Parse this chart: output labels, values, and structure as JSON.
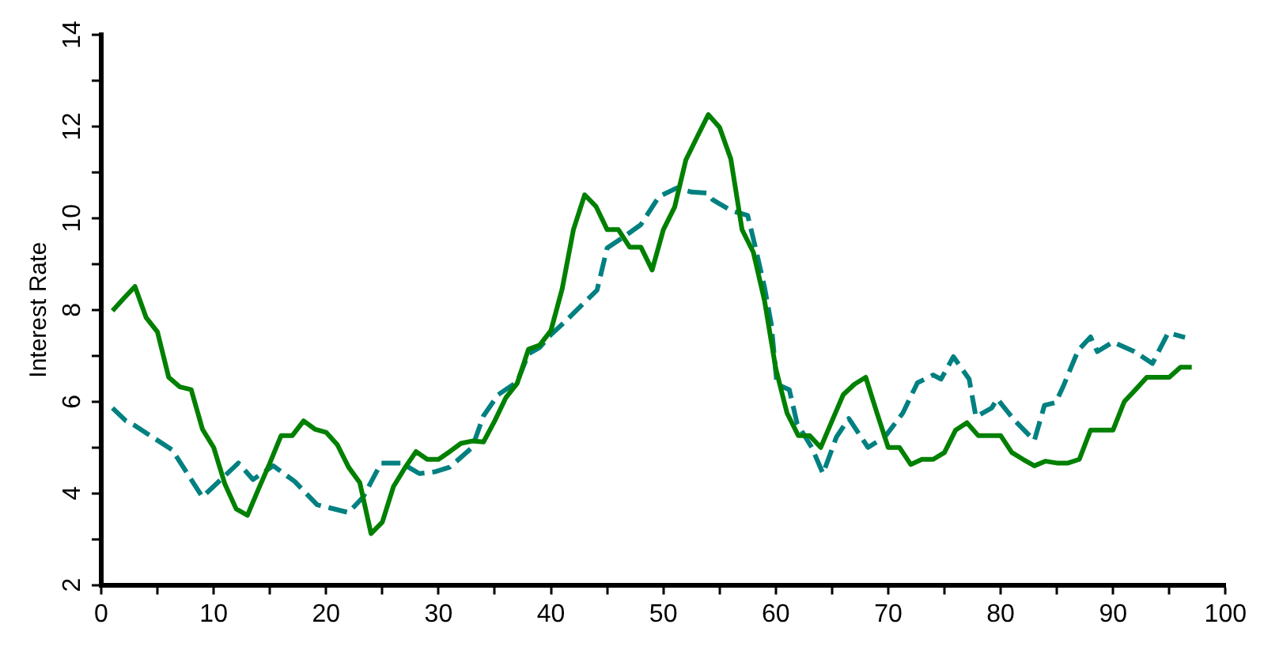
{
  "chart_data": {
    "type": "line",
    "ylabel": "Interest Rate",
    "xlim": [
      0,
      100
    ],
    "ylim": [
      2,
      14
    ],
    "xticks": [
      0,
      {
        "value": 5,
        "label": null
      },
      10,
      {
        "value": 15,
        "label": null
      },
      20,
      {
        "value": 25,
        "label": null
      },
      30,
      {
        "value": 35,
        "label": null
      },
      40,
      {
        "value": 45,
        "label": null
      },
      50,
      {
        "value": 55,
        "label": null
      },
      60,
      {
        "value": 65,
        "label": null
      },
      70,
      {
        "value": 75,
        "label": null
      },
      80,
      {
        "value": 85,
        "label": null
      },
      90,
      {
        "value": 95,
        "label": null
      },
      100
    ],
    "yticks": [
      2,
      {
        "value": 3,
        "label": null
      },
      4,
      {
        "value": 5,
        "label": null
      },
      6,
      {
        "value": 7,
        "label": null
      },
      8,
      {
        "value": 9,
        "label": null
      },
      10,
      {
        "value": 11,
        "label": null
      },
      12,
      {
        "value": 13,
        "label": null
      },
      14
    ],
    "grid": false,
    "legend": false,
    "marker": "none",
    "series": [
      {
        "color": "#008000",
        "line_style": "solid",
        "x": [
          1,
          2,
          3,
          4,
          5,
          6,
          7,
          8,
          9,
          10,
          11,
          12,
          13,
          14,
          15,
          16,
          17,
          18,
          19,
          20,
          21,
          22,
          23,
          24,
          25,
          26,
          27,
          28,
          29,
          30,
          31,
          32,
          33,
          34,
          35,
          36,
          37,
          38,
          39,
          40,
          41,
          42,
          43,
          44,
          45,
          46,
          47,
          48,
          49,
          50,
          51,
          52,
          53,
          54,
          55,
          56,
          57,
          58,
          59,
          60,
          61,
          62,
          63,
          64,
          65,
          66,
          67,
          68,
          69,
          70,
          71,
          72,
          73,
          74,
          75,
          76,
          77,
          78,
          79,
          80,
          81,
          82,
          83,
          84,
          85,
          86,
          87,
          88,
          89,
          90,
          91,
          92,
          93,
          94,
          95,
          96,
          97
        ],
        "values": [
          7.98,
          8.25,
          8.51,
          7.83,
          7.52,
          6.53,
          6.32,
          6.26,
          5.4,
          5.0,
          4.2,
          3.66,
          3.52,
          4.1,
          4.66,
          5.26,
          5.26,
          5.58,
          5.4,
          5.33,
          5.06,
          4.57,
          4.23,
          3.12,
          3.37,
          4.15,
          4.55,
          4.91,
          4.74,
          4.74,
          4.91,
          5.09,
          5.14,
          5.12,
          5.58,
          6.09,
          6.4,
          7.14,
          7.23,
          7.55,
          8.46,
          9.75,
          10.51,
          10.26,
          9.75,
          9.75,
          9.37,
          9.37,
          8.87,
          9.75,
          10.24,
          11.27,
          11.77,
          12.26,
          11.98,
          11.29,
          9.75,
          9.26,
          8.2,
          6.72,
          5.75,
          5.26,
          5.26,
          5.0,
          5.58,
          6.15,
          6.38,
          6.53,
          5.75,
          5.0,
          5.0,
          4.63,
          4.74,
          4.74,
          4.89,
          5.38,
          5.54,
          5.26,
          5.26,
          5.26,
          4.89,
          4.74,
          4.6,
          4.7,
          4.66,
          4.66,
          4.74,
          5.38,
          5.38,
          5.38,
          6.0,
          6.26,
          6.53,
          6.53,
          6.53,
          6.75,
          6.75
        ]
      },
      {
        "color": "#008080",
        "line_style": "dashed",
        "x": [
          1,
          2.2,
          2.9,
          6.3,
          9,
          12.2,
          13.5,
          15.3,
          17.2,
          19.2,
          22,
          23.3,
          24.9,
          26.7,
          28.3,
          29.7,
          31,
          33,
          34,
          35.3,
          37,
          38,
          39,
          40,
          41.4,
          44.1,
          45,
          46.4,
          48,
          49.6,
          51.2,
          52.5,
          53.9,
          54.4,
          56,
          57.5,
          58.2,
          59,
          59.6,
          60.1,
          61.2,
          61.9,
          63.2,
          64.2,
          65.4,
          66.5,
          68.2,
          69.7,
          71.3,
          72.6,
          74,
          74.7,
          75.8,
          77.2,
          77.8,
          79.2,
          79.7,
          81.2,
          83,
          83.9,
          84.9,
          85.6,
          86.9,
          88,
          88.6,
          90,
          91.9,
          93.5,
          94.9,
          96.4
        ],
        "values": [
          5.86,
          5.58,
          5.49,
          4.95,
          3.92,
          4.66,
          4.3,
          4.6,
          4.26,
          3.75,
          3.58,
          3.92,
          4.66,
          4.66,
          4.43,
          4.47,
          4.57,
          5.0,
          5.69,
          6.15,
          6.43,
          7.04,
          7.18,
          7.46,
          7.78,
          8.43,
          9.35,
          9.58,
          9.86,
          10.47,
          10.66,
          10.57,
          10.55,
          10.4,
          10.17,
          10.06,
          9.35,
          8.49,
          7.69,
          6.38,
          6.26,
          5.52,
          5.0,
          4.43,
          5.23,
          5.63,
          5.0,
          5.23,
          5.75,
          6.41,
          6.58,
          6.49,
          6.98,
          6.49,
          5.67,
          5.86,
          6.06,
          5.6,
          5.15,
          5.92,
          5.98,
          6.35,
          7.12,
          7.41,
          7.09,
          7.3,
          7.09,
          6.83,
          7.5,
          7.4
        ]
      }
    ]
  }
}
